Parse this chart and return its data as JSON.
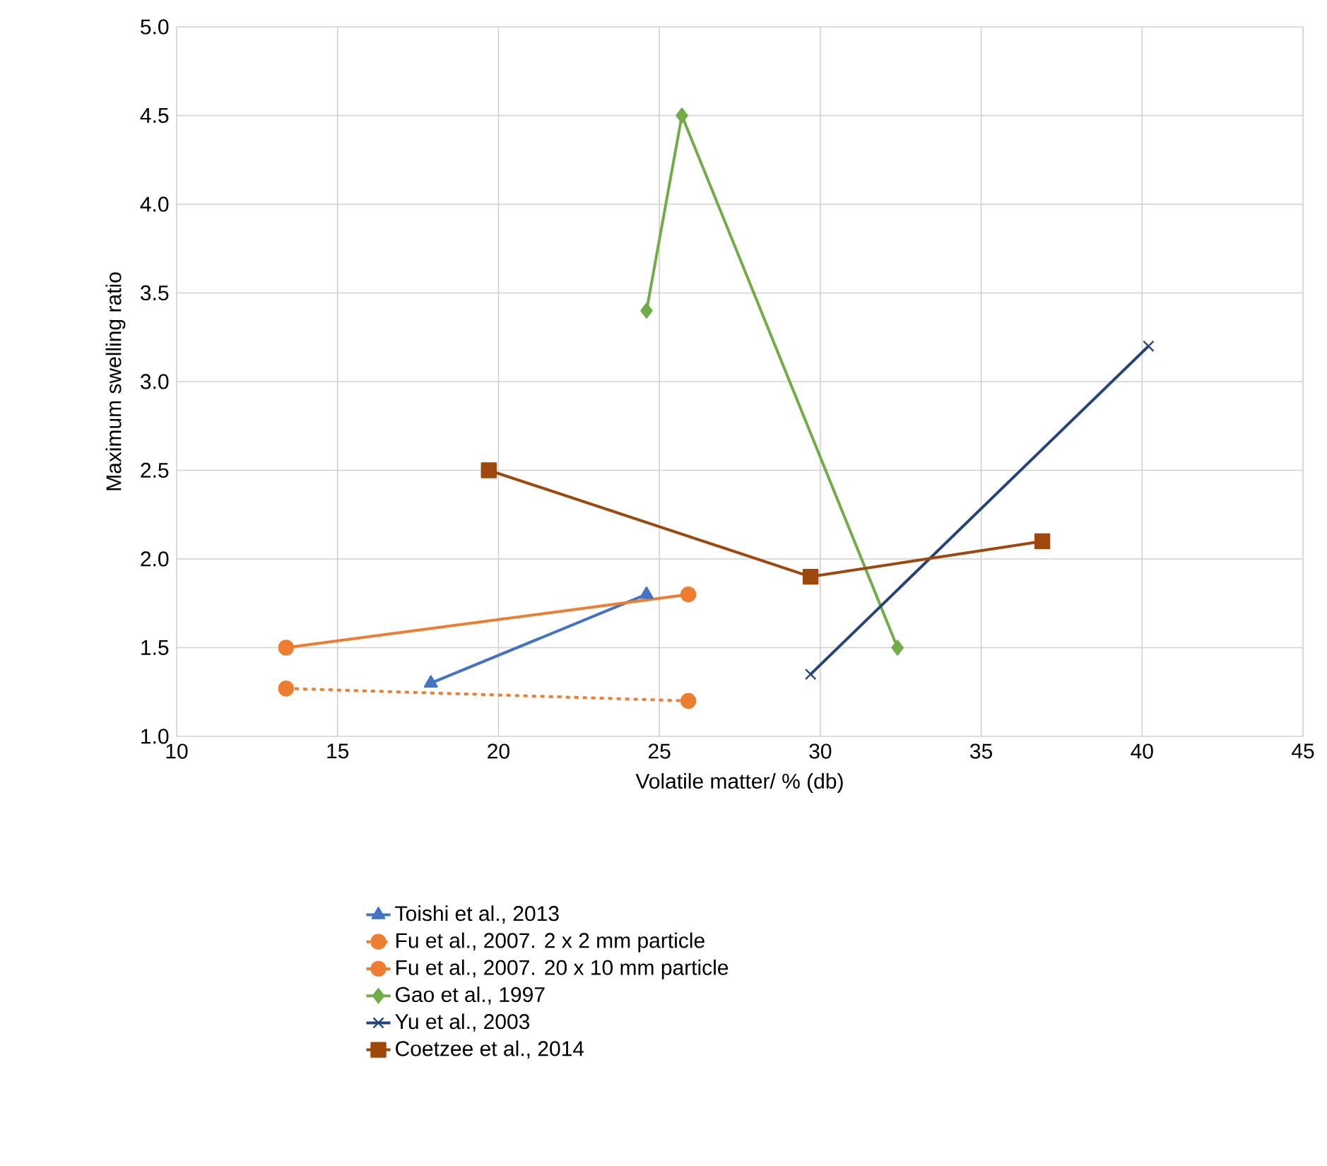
{
  "chart_data": {
    "type": "line",
    "xlabel": "Volatile matter/ % (db)",
    "ylabel": "Maximum swelling ratio",
    "xlim": [
      10,
      45
    ],
    "xticks": [
      10,
      15,
      20,
      25,
      30,
      35,
      40,
      45
    ],
    "ylim": [
      1.0,
      5.0
    ],
    "yticks": [
      {
        "value": 1.0,
        "label": "1.0"
      },
      {
        "value": 1.5,
        "label": "1.5"
      },
      {
        "value": 2.0,
        "label": "2.0"
      },
      {
        "value": 2.5,
        "label": "2.5"
      },
      {
        "value": 3.0,
        "label": "3.0"
      },
      {
        "value": 3.5,
        "label": "3.5"
      },
      {
        "value": 4.0,
        "label": "4.0"
      },
      {
        "value": 4.5,
        "label": "4.5"
      },
      {
        "value": 5.0,
        "label": "5.0"
      }
    ],
    "grid": true,
    "legend": "bottom",
    "series": [
      {
        "name": "Toishi et al., 2013",
        "color": "#4472c4",
        "marker": "triangle",
        "line_style": "solid",
        "x": [
          17.9,
          24.6
        ],
        "values": [
          1.3,
          1.8
        ]
      },
      {
        "name": "Fu et al., 2007. 2 x 2 mm particle",
        "color": "#ed7d31",
        "marker": "circle",
        "line_style": "dashed",
        "x": [
          13.4,
          25.9
        ],
        "values": [
          1.27,
          1.2
        ]
      },
      {
        "name": "Fu et al., 2007. 20 x 10 mm particle",
        "color": "#ed7d31",
        "marker": "circle",
        "line_style": "solid",
        "x": [
          13.4,
          25.9
        ],
        "values": [
          1.5,
          1.8
        ]
      },
      {
        "name": "Gao et al., 1997",
        "color": "#70ad47",
        "marker": "diamond",
        "line_style": "solid",
        "x": [
          24.6,
          25.7,
          32.4
        ],
        "values": [
          3.4,
          4.5,
          1.5
        ]
      },
      {
        "name": "Yu et al., 2003",
        "color": "#264478",
        "marker": "cross",
        "line_style": "solid",
        "x": [
          29.7,
          40.2
        ],
        "values": [
          1.35,
          3.2
        ]
      },
      {
        "name": "Coetzee et al., 2014",
        "color": "#9e480e",
        "marker": "square",
        "line_style": "solid",
        "x": [
          19.7,
          29.7,
          36.9
        ],
        "values": [
          2.5,
          1.9,
          2.1
        ]
      }
    ]
  }
}
